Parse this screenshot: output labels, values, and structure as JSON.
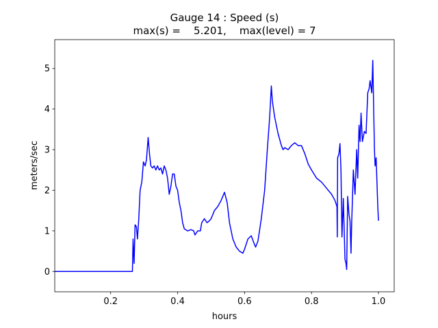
{
  "chart_data": {
    "type": "line",
    "title": [
      "Gauge 14 : Speed (s)",
      "max(s) =    5.201,    max(level) = 7"
    ],
    "xlabel": "hours",
    "ylabel": "meters/sec",
    "color": "#0000ff",
    "x": [
      0.033,
      0.265,
      0.267,
      0.27,
      0.273,
      0.277,
      0.28,
      0.284,
      0.288,
      0.293,
      0.298,
      0.303,
      0.307,
      0.312,
      0.316,
      0.32,
      0.325,
      0.33,
      0.335,
      0.34,
      0.345,
      0.35,
      0.355,
      0.36,
      0.365,
      0.37,
      0.375,
      0.38,
      0.385,
      0.39,
      0.395,
      0.4,
      0.405,
      0.41,
      0.415,
      0.42,
      0.43,
      0.44,
      0.448,
      0.452,
      0.46,
      0.468,
      0.472,
      0.48,
      0.488,
      0.495,
      0.5,
      0.51,
      0.52,
      0.53,
      0.54,
      0.548,
      0.555,
      0.565,
      0.575,
      0.585,
      0.595,
      0.6,
      0.61,
      0.62,
      0.628,
      0.633,
      0.64,
      0.65,
      0.66,
      0.668,
      0.675,
      0.68,
      0.683,
      0.69,
      0.7,
      0.71,
      0.715,
      0.72,
      0.73,
      0.74,
      0.75,
      0.76,
      0.77,
      0.78,
      0.79,
      0.8,
      0.815,
      0.83,
      0.85,
      0.86,
      0.87,
      0.876,
      0.877,
      0.878,
      0.882,
      0.885,
      0.888,
      0.891,
      0.895,
      0.9,
      0.903,
      0.905,
      0.908,
      0.912,
      0.915,
      0.918,
      0.92,
      0.925,
      0.93,
      0.935,
      0.938,
      0.942,
      0.945,
      0.948,
      0.952,
      0.958,
      0.963,
      0.968,
      0.972,
      0.975,
      0.98,
      0.983,
      0.988,
      0.99,
      0.993,
      0.998,
      1.0
    ],
    "values": [
      0,
      0,
      0.8,
      0.2,
      1.15,
      1.1,
      0.8,
      1.3,
      2.0,
      2.2,
      2.7,
      2.6,
      2.75,
      3.3,
      2.9,
      2.6,
      2.55,
      2.6,
      2.5,
      2.6,
      2.5,
      2.55,
      2.4,
      2.6,
      2.5,
      2.3,
      1.9,
      2.1,
      2.4,
      2.4,
      2.1,
      2.0,
      1.7,
      1.5,
      1.2,
      1.05,
      1.0,
      1.03,
      1.0,
      0.9,
      1.0,
      1.0,
      1.2,
      1.3,
      1.2,
      1.25,
      1.3,
      1.5,
      1.6,
      1.75,
      1.95,
      1.7,
      1.2,
      0.8,
      0.6,
      0.5,
      0.45,
      0.55,
      0.8,
      0.88,
      0.7,
      0.6,
      0.75,
      1.3,
      2.0,
      3.0,
      3.8,
      4.57,
      4.2,
      3.8,
      3.4,
      3.1,
      3.0,
      3.05,
      3.0,
      3.1,
      3.17,
      3.1,
      3.1,
      2.9,
      2.65,
      2.5,
      2.3,
      2.2,
      2.0,
      1.9,
      1.75,
      1.6,
      0.85,
      2.8,
      2.9,
      3.15,
      2.5,
      0.85,
      1.8,
      0.3,
      0.2,
      0.05,
      1.85,
      1.4,
      1.25,
      0.45,
      1.2,
      2.5,
      1.9,
      3.0,
      2.3,
      3.6,
      3.2,
      3.9,
      3.2,
      3.45,
      3.4,
      4.4,
      4.5,
      4.7,
      4.4,
      5.2,
      3.0,
      2.6,
      2.8,
      1.6,
      1.25
    ],
    "xlim": [
      0.033,
      1.047
    ],
    "ylim": [
      -0.5,
      5.71
    ],
    "xticks": [
      0.2,
      0.4,
      0.6,
      0.8,
      {
        "value": 1,
        "label": "1.0"
      }
    ],
    "yticks": [
      0,
      1,
      2,
      3,
      4,
      5
    ]
  }
}
